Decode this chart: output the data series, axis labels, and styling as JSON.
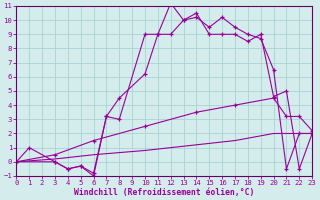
{
  "xlabel": "Windchill (Refroidissement éolien,°C)",
  "bg_color": "#d4ecec",
  "grid_color": "#aad4d4",
  "line_color": "#990099",
  "xlim": [
    0,
    23
  ],
  "ylim": [
    -1,
    11
  ],
  "xticks": [
    0,
    1,
    2,
    3,
    4,
    5,
    6,
    7,
    8,
    9,
    10,
    11,
    12,
    13,
    14,
    15,
    16,
    17,
    18,
    19,
    20,
    21,
    22,
    23
  ],
  "yticks": [
    -1,
    0,
    1,
    2,
    3,
    4,
    5,
    6,
    7,
    8,
    9,
    10,
    11
  ],
  "curve1_x": [
    0,
    1,
    3,
    4,
    5,
    6,
    7,
    8,
    10,
    11,
    12,
    13,
    14,
    15,
    16,
    17,
    18,
    19,
    20,
    21,
    22,
    23
  ],
  "curve1_y": [
    0,
    1,
    0,
    -0.5,
    -0.3,
    -1.0,
    3.2,
    3.0,
    9.0,
    9.0,
    11.2,
    10.0,
    10.2,
    9.5,
    10.2,
    9.5,
    9.0,
    8.7,
    6.5,
    -0.5,
    2.0,
    2.0
  ],
  "curve2_x": [
    0,
    3,
    4,
    5,
    6,
    7,
    8,
    10,
    11,
    12,
    13,
    14,
    15,
    16,
    17,
    18,
    19,
    20,
    21,
    22,
    23
  ],
  "curve2_y": [
    0,
    0,
    -0.5,
    -0.3,
    -0.8,
    3.2,
    4.5,
    6.2,
    9.0,
    9.0,
    10.0,
    10.5,
    9.0,
    9.0,
    9.0,
    8.5,
    9.0,
    4.6,
    5.0,
    -0.5,
    2.0
  ],
  "curve3_x": [
    0,
    3,
    6,
    10,
    14,
    17,
    20,
    21,
    22,
    23
  ],
  "curve3_y": [
    0,
    0.5,
    1.5,
    2.5,
    3.5,
    4.0,
    4.5,
    3.2,
    3.2,
    2.2
  ],
  "curve4_x": [
    0,
    3,
    6,
    10,
    14,
    17,
    20,
    22,
    23
  ],
  "curve4_y": [
    0,
    0.2,
    0.5,
    0.8,
    1.2,
    1.5,
    2.0,
    2.0,
    2.0
  ]
}
